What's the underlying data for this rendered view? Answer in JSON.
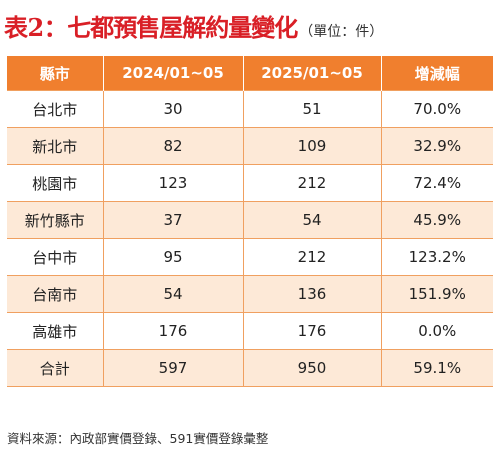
{
  "title": {
    "prefix": "表2：",
    "main": "七都預售屋解約量變化",
    "unit": "（單位：件）"
  },
  "table": {
    "headers": [
      "縣市",
      "2024/01~05",
      "2025/01~05",
      "增減幅"
    ],
    "rows": [
      [
        "台北市",
        "30",
        "51",
        "70.0%"
      ],
      [
        "新北市",
        "82",
        "109",
        "32.9%"
      ],
      [
        "桃園市",
        "123",
        "212",
        "72.4%"
      ],
      [
        "新竹縣市",
        "37",
        "54",
        "45.9%"
      ],
      [
        "台中市",
        "95",
        "212",
        "123.2%"
      ],
      [
        "台南市",
        "54",
        "136",
        "151.9%"
      ],
      [
        "高雄市",
        "176",
        "176",
        "0.0%"
      ],
      [
        "合計",
        "597",
        "950",
        "59.1%"
      ]
    ]
  },
  "source": "資料來源：內政部實價登錄、591實價登錄彙整",
  "colors": {
    "title": "#d91f26",
    "header_bg": "#f07f2e",
    "row_alt_bg": "#fde9d7",
    "border": "#f0a060"
  }
}
